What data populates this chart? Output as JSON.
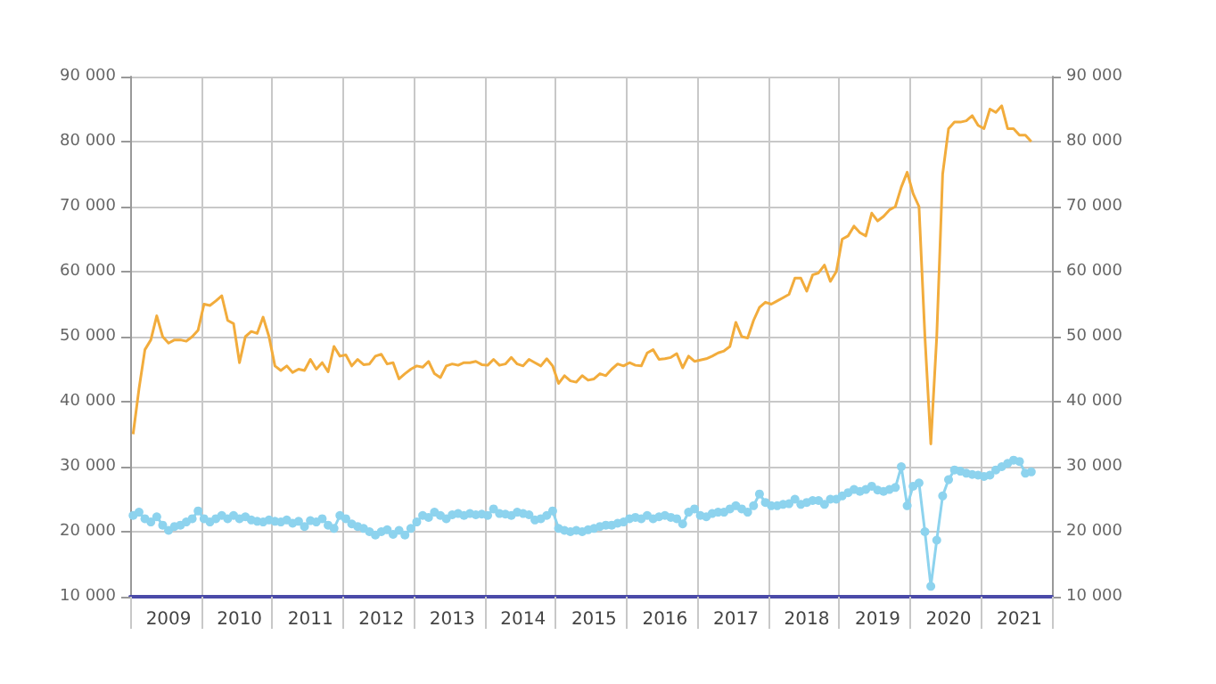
{
  "chart_data": {
    "type": "line",
    "categories": [
      null,
      null,
      null,
      null,
      null,
      null,
      "2009",
      null,
      null,
      null,
      null,
      null,
      null,
      null,
      null,
      null,
      null,
      null,
      "2010",
      null,
      null,
      null,
      null,
      null,
      null,
      null,
      null,
      null,
      null,
      null,
      "2011",
      null,
      null,
      null,
      null,
      null,
      null,
      null,
      null,
      null,
      null,
      null,
      "2012",
      null,
      null,
      null,
      null,
      null,
      null,
      null,
      null,
      null,
      null,
      null,
      "2013",
      null,
      null,
      null,
      null,
      null,
      null,
      null,
      null,
      null,
      null,
      null,
      "2014",
      null,
      null,
      null,
      null,
      null,
      null,
      null,
      null,
      null,
      null,
      null,
      "2015",
      null,
      null,
      null,
      null,
      null,
      null,
      null,
      null,
      null,
      null,
      null,
      "2016",
      null,
      null,
      null,
      null,
      null,
      null,
      null,
      null,
      null,
      null,
      null,
      "2017",
      null,
      null,
      null,
      null,
      null,
      null,
      null,
      null,
      null,
      null,
      null,
      "2018",
      null,
      null,
      null,
      null,
      null,
      null,
      null,
      null,
      null,
      null,
      null,
      "2019",
      null,
      null,
      null,
      null,
      null,
      null,
      null,
      null,
      null,
      null,
      null,
      "2020",
      null,
      null,
      null,
      null,
      null,
      null,
      null,
      null,
      null,
      null,
      null,
      "2021",
      null,
      null,
      null,
      null,
      null
    ],
    "series": [
      {
        "color": "#f2ac3c",
        "marker": "none",
        "values": [
          35000,
          42000,
          48000,
          49500,
          53200,
          50000,
          49000,
          49500,
          49500,
          49300,
          50000,
          51000,
          55000,
          54800,
          55500,
          56300,
          52500,
          52000,
          46000,
          50000,
          50800,
          50500,
          53000,
          50000,
          45500,
          44800,
          45500,
          44500,
          45000,
          44800,
          46500,
          45000,
          46000,
          44600,
          48500,
          47000,
          47200,
          45500,
          46500,
          45700,
          45800,
          47000,
          47300,
          45800,
          46000,
          43500,
          44300,
          45000,
          45500,
          45300,
          46200,
          44300,
          43700,
          45500,
          45800,
          45600,
          46000,
          46000,
          46200,
          45700,
          45600,
          46500,
          45600,
          45800,
          46800,
          45800,
          45500,
          46500,
          46000,
          45500,
          46600,
          45500,
          42800,
          44000,
          43200,
          43000,
          44000,
          43300,
          43500,
          44300,
          44000,
          45000,
          45800,
          45500,
          46000,
          45600,
          45500,
          47500,
          48000,
          46500,
          46600,
          46800,
          47400,
          45200,
          47000,
          46200,
          46400,
          46600,
          47000,
          47500,
          47800,
          48500,
          52200,
          50000,
          49800,
          52500,
          54500,
          55300,
          55000,
          55500,
          56000,
          56500,
          59000,
          59000,
          57000,
          59500,
          59800,
          61000,
          58500,
          60000,
          65000,
          65500,
          67000,
          66000,
          65500,
          69000,
          67800,
          68500,
          69500,
          70000,
          73000,
          75300,
          72000,
          70000,
          50000,
          33500,
          50000,
          75000,
          82000,
          83000,
          83000,
          83200,
          84000,
          82500,
          82000,
          85000,
          84500,
          85500,
          82000,
          82000,
          81000,
          81000,
          80000,
          null,
          null,
          null
        ]
      },
      {
        "color": "#8dd3ee",
        "marker": "circle",
        "values": [
          22500,
          23000,
          22000,
          21500,
          22300,
          21000,
          20200,
          20800,
          21000,
          21500,
          22000,
          23200,
          22000,
          21500,
          22000,
          22500,
          22000,
          22500,
          22000,
          22300,
          21800,
          21600,
          21500,
          21800,
          21600,
          21500,
          21800,
          21300,
          21600,
          20800,
          21700,
          21500,
          22000,
          21000,
          20500,
          22500,
          22000,
          21200,
          20800,
          20500,
          20000,
          19500,
          20000,
          20300,
          19600,
          20200,
          19500,
          20500,
          21500,
          22500,
          22200,
          23000,
          22500,
          22000,
          22600,
          22800,
          22500,
          22800,
          22600,
          22700,
          22500,
          23500,
          22800,
          22700,
          22500,
          23000,
          22800,
          22600,
          21800,
          22000,
          22500,
          23200,
          20500,
          20200,
          20000,
          20200,
          20000,
          20300,
          20500,
          20800,
          21000,
          21000,
          21300,
          21500,
          22000,
          22200,
          22000,
          22500,
          22000,
          22300,
          22500,
          22200,
          22000,
          21200,
          23000,
          23500,
          22500,
          22300,
          22800,
          23000,
          23000,
          23500,
          24000,
          23500,
          23000,
          24000,
          25800,
          24500,
          24000,
          24000,
          24200,
          24300,
          25000,
          24200,
          24500,
          24800,
          24800,
          24200,
          25000,
          25000,
          25500,
          26000,
          26500,
          26200,
          26500,
          27000,
          26400,
          26200,
          26500,
          26800,
          30000,
          24000,
          27000,
          27500,
          20000,
          11600,
          18700,
          25500,
          28000,
          29500,
          29300,
          29000,
          28800,
          28700,
          28500,
          28700,
          29500,
          30000,
          30500,
          31000,
          30800,
          29000,
          29200,
          null,
          null,
          null
        ]
      }
    ],
    "ylim": [
      10000,
      90000
    ],
    "yticks": [
      {
        "value": 10000,
        "label": "10 000"
      },
      {
        "value": 20000,
        "label": "20 000"
      },
      {
        "value": 30000,
        "label": "30 000"
      },
      {
        "value": 40000,
        "label": "40 000"
      },
      {
        "value": 50000,
        "label": "50 000"
      },
      {
        "value": 60000,
        "label": "60 000"
      },
      {
        "value": 70000,
        "label": "70 000"
      },
      {
        "value": 80000,
        "label": "80 000"
      },
      {
        "value": 90000,
        "label": "90 000"
      }
    ],
    "y2lim": [
      10000,
      90000
    ],
    "y2ticks": [
      {
        "value": 10000,
        "label": "10 000"
      },
      {
        "value": 20000,
        "label": "20 000"
      },
      {
        "value": 30000,
        "label": "30 000"
      },
      {
        "value": 40000,
        "label": "40 000"
      },
      {
        "value": 50000,
        "label": "50 000"
      },
      {
        "value": 60000,
        "label": "60 000"
      },
      {
        "value": 70000,
        "label": "70 000"
      },
      {
        "value": 80000,
        "label": "80 000"
      },
      {
        "value": 90000,
        "label": "90 000"
      }
    ],
    "grid": true
  }
}
